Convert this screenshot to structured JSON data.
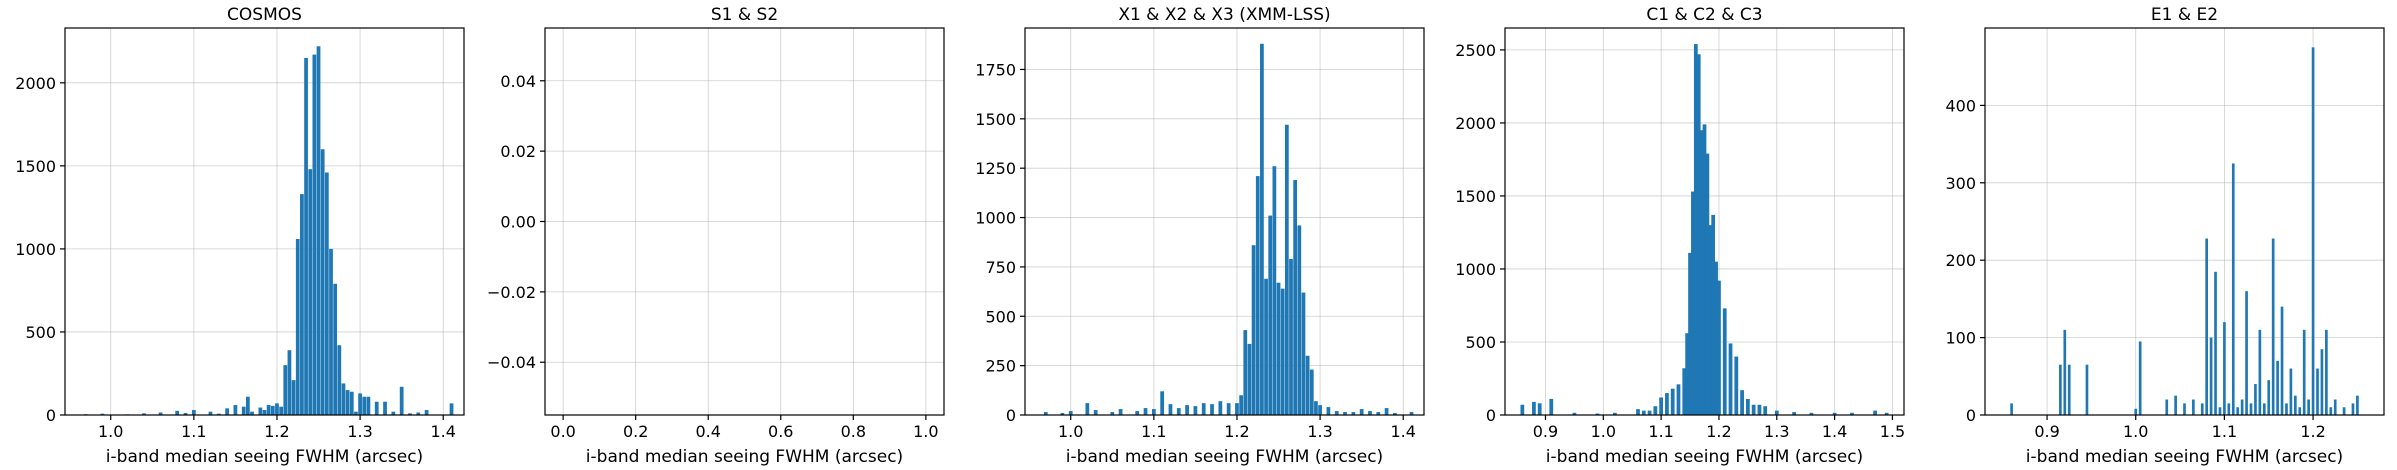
{
  "bar_color": "#1f77b4",
  "chart_data": [
    {
      "type": "bar",
      "title": "COSMOS",
      "xlabel": "i-band median seeing FWHM (arcsec)",
      "ylabel": "",
      "grid": true,
      "xlim": [
        0.945,
        1.425
      ],
      "ylim": [
        0,
        2330
      ],
      "xticks": [
        1.0,
        1.1,
        1.2,
        1.3,
        1.4
      ],
      "xtick_labels": [
        "1.0",
        "1.1",
        "1.2",
        "1.3",
        "1.4"
      ],
      "yticks": [
        0,
        500,
        1000,
        1500,
        2000
      ],
      "ytick_labels": [
        "0",
        "500",
        "1000",
        "1500",
        "2000"
      ],
      "bin_width": 0.0045,
      "x": [
        0.97,
        0.99,
        1.02,
        1.04,
        1.06,
        1.08,
        1.09,
        1.1,
        1.12,
        1.13,
        1.14,
        1.15,
        1.16,
        1.165,
        1.17,
        1.18,
        1.185,
        1.19,
        1.195,
        1.2,
        1.205,
        1.21,
        1.215,
        1.22,
        1.225,
        1.23,
        1.235,
        1.24,
        1.245,
        1.25,
        1.255,
        1.26,
        1.265,
        1.27,
        1.275,
        1.28,
        1.285,
        1.29,
        1.295,
        1.3,
        1.305,
        1.31,
        1.32,
        1.33,
        1.34,
        1.35,
        1.36,
        1.37,
        1.38,
        1.41
      ],
      "values": [
        5,
        8,
        4,
        10,
        15,
        25,
        12,
        30,
        20,
        8,
        40,
        60,
        50,
        110,
        20,
        45,
        30,
        60,
        55,
        70,
        50,
        300,
        390,
        210,
        1060,
        1330,
        2150,
        1480,
        2170,
        2220,
        1600,
        1460,
        1000,
        790,
        420,
        190,
        150,
        140,
        20,
        130,
        110,
        110,
        80,
        80,
        20,
        170,
        10,
        15,
        30,
        70
      ]
    },
    {
      "type": "bar",
      "title": "S1 & S2",
      "xlabel": "i-band median seeing FWHM (arcsec)",
      "ylabel": "",
      "grid": true,
      "xlim": [
        -0.05,
        1.05
      ],
      "ylim": [
        -0.055,
        0.055
      ],
      "xticks": [
        0.0,
        0.2,
        0.4,
        0.6,
        0.8,
        1.0
      ],
      "xtick_labels": [
        "0.0",
        "0.2",
        "0.4",
        "0.6",
        "0.8",
        "1.0"
      ],
      "yticks": [
        -0.04,
        -0.02,
        0.0,
        0.02,
        0.04
      ],
      "ytick_labels": [
        "−0.04",
        "−0.02",
        "0.00",
        "0.02",
        "0.04"
      ],
      "bin_width": 0.01,
      "x": [],
      "values": []
    },
    {
      "type": "bar",
      "title": "X1 & X2 & X3 (XMM-LSS)",
      "xlabel": "i-band median seeing FWHM (arcsec)",
      "ylabel": "",
      "grid": true,
      "xlim": [
        0.945,
        1.425
      ],
      "ylim": [
        0,
        1960
      ],
      "xticks": [
        1.0,
        1.1,
        1.2,
        1.3,
        1.4
      ],
      "xtick_labels": [
        "1.0",
        "1.1",
        "1.2",
        "1.3",
        "1.4"
      ],
      "yticks": [
        0,
        250,
        500,
        750,
        1000,
        1250,
        1500,
        1750
      ],
      "ytick_labels": [
        "0",
        "250",
        "500",
        "750",
        "1000",
        "1250",
        "1500",
        "1750"
      ],
      "bin_width": 0.0045,
      "x": [
        0.97,
        0.99,
        1.0,
        1.02,
        1.03,
        1.05,
        1.06,
        1.08,
        1.09,
        1.1,
        1.11,
        1.12,
        1.13,
        1.14,
        1.15,
        1.16,
        1.17,
        1.18,
        1.19,
        1.2,
        1.205,
        1.21,
        1.215,
        1.22,
        1.225,
        1.23,
        1.235,
        1.24,
        1.245,
        1.25,
        1.255,
        1.26,
        1.265,
        1.27,
        1.275,
        1.28,
        1.285,
        1.29,
        1.295,
        1.3,
        1.31,
        1.32,
        1.33,
        1.34,
        1.35,
        1.36,
        1.37,
        1.38,
        1.39,
        1.41
      ],
      "values": [
        15,
        10,
        20,
        60,
        25,
        15,
        30,
        20,
        35,
        30,
        120,
        55,
        35,
        50,
        45,
        60,
        55,
        70,
        60,
        60,
        100,
        430,
        360,
        860,
        1210,
        1880,
        690,
        1010,
        1260,
        670,
        640,
        1470,
        790,
        1190,
        960,
        620,
        300,
        230,
        70,
        50,
        40,
        20,
        15,
        15,
        30,
        20,
        15,
        35,
        10,
        15
      ]
    },
    {
      "type": "bar",
      "title": "C1 & C2 & C3",
      "xlabel": "i-band median seeing FWHM (arcsec)",
      "ylabel": "",
      "grid": true,
      "xlim": [
        0.83,
        1.52
      ],
      "ylim": [
        0,
        2650
      ],
      "xticks": [
        0.9,
        1.0,
        1.1,
        1.2,
        1.3,
        1.4,
        1.5
      ],
      "xtick_labels": [
        "0.9",
        "1.0",
        "1.1",
        "1.2",
        "1.3",
        "1.4",
        "1.5"
      ],
      "yticks": [
        0,
        500,
        1000,
        1500,
        2000,
        2500
      ],
      "ytick_labels": [
        "0",
        "500",
        "1000",
        "1500",
        "2000",
        "2500"
      ],
      "bin_width": 0.0065,
      "x": [
        0.86,
        0.88,
        0.89,
        0.91,
        0.95,
        0.99,
        1.02,
        1.06,
        1.07,
        1.08,
        1.09,
        1.1,
        1.11,
        1.12,
        1.13,
        1.14,
        1.145,
        1.15,
        1.155,
        1.16,
        1.165,
        1.17,
        1.175,
        1.18,
        1.185,
        1.19,
        1.195,
        1.2,
        1.21,
        1.22,
        1.23,
        1.24,
        1.25,
        1.26,
        1.27,
        1.28,
        1.3,
        1.33,
        1.36,
        1.4,
        1.43,
        1.47,
        1.49
      ],
      "values": [
        70,
        90,
        80,
        110,
        15,
        10,
        15,
        40,
        30,
        30,
        60,
        120,
        150,
        180,
        210,
        320,
        560,
        1110,
        1530,
        2540,
        2470,
        1950,
        1990,
        1790,
        1300,
        1370,
        1050,
        920,
        730,
        490,
        400,
        170,
        110,
        70,
        70,
        60,
        30,
        20,
        15,
        15,
        15,
        30,
        15
      ]
    },
    {
      "type": "bar",
      "title": "E1 & E2",
      "xlabel": "i-band median seeing FWHM (arcsec)",
      "ylabel": "",
      "grid": true,
      "xlim": [
        0.83,
        1.28
      ],
      "ylim": [
        0,
        500
      ],
      "xticks": [
        0.9,
        1.0,
        1.1,
        1.2
      ],
      "xtick_labels": [
        "0.9",
        "1.0",
        "1.1",
        "1.2"
      ],
      "yticks": [
        0,
        100,
        200,
        300,
        400
      ],
      "ytick_labels": [
        "0",
        "100",
        "200",
        "300",
        "400"
      ],
      "bin_width": 0.003,
      "x": [
        0.86,
        0.915,
        0.92,
        0.925,
        0.945,
        1.0,
        1.005,
        1.035,
        1.045,
        1.055,
        1.065,
        1.075,
        1.08,
        1.085,
        1.09,
        1.095,
        1.1,
        1.105,
        1.11,
        1.115,
        1.12,
        1.125,
        1.13,
        1.135,
        1.14,
        1.145,
        1.15,
        1.155,
        1.16,
        1.165,
        1.17,
        1.175,
        1.18,
        1.185,
        1.19,
        1.195,
        1.2,
        1.205,
        1.21,
        1.215,
        1.22,
        1.225,
        1.235,
        1.245,
        1.25
      ],
      "values": [
        15,
        65,
        110,
        65,
        65,
        8,
        95,
        20,
        25,
        15,
        20,
        15,
        228,
        100,
        185,
        10,
        120,
        15,
        325,
        10,
        20,
        160,
        15,
        40,
        110,
        15,
        45,
        228,
        70,
        140,
        15,
        60,
        25,
        10,
        110,
        20,
        475,
        60,
        85,
        110,
        10,
        20,
        10,
        15,
        25
      ]
    }
  ]
}
